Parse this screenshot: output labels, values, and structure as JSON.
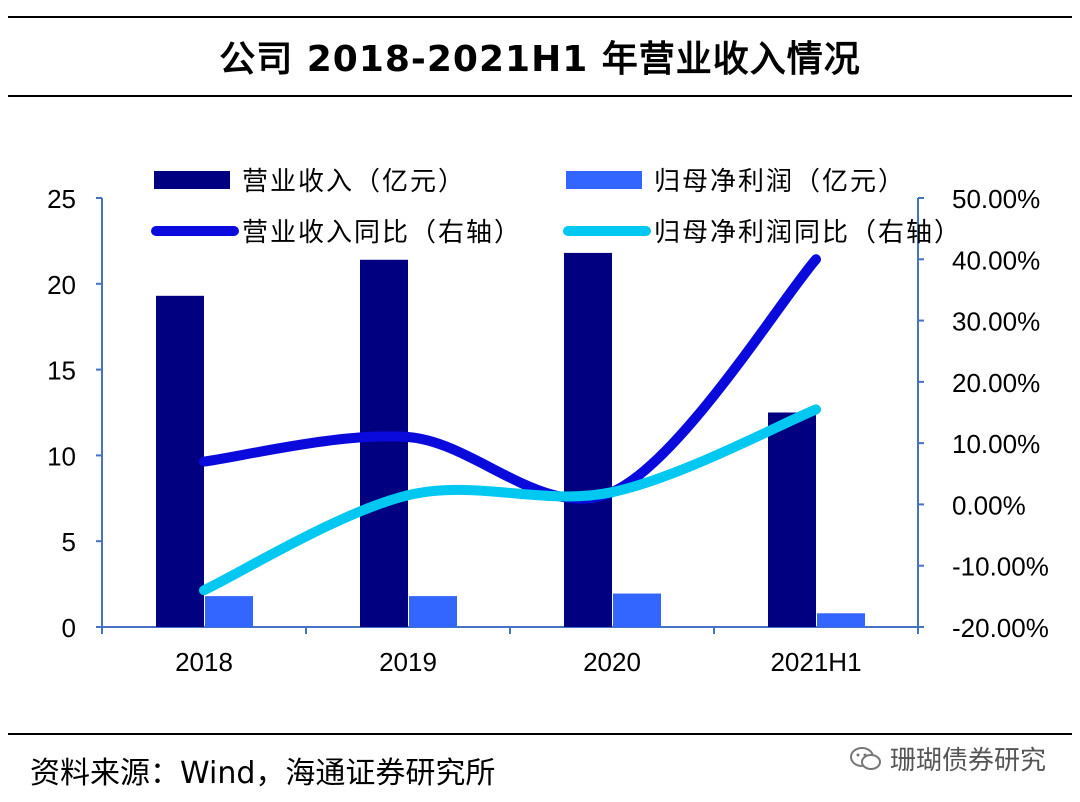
{
  "title": "公司 2018-2021H1 年营业收入情况",
  "source": "资料来源：Wind，海通证券研究所",
  "watermark": "珊瑚债券研究",
  "colors": {
    "revenue_bar": "#000080",
    "profit_bar": "#3366FF",
    "revenue_line": "#0A0ADC",
    "profit_line": "#00C8F0",
    "axis": "#4472C4"
  },
  "chart_data": {
    "type": "bar",
    "categories": [
      "2018",
      "2019",
      "2020",
      "2021H1"
    ],
    "series": [
      {
        "name": "营业收入（亿元）",
        "type": "bar",
        "axis": "left",
        "values": [
          19.3,
          21.4,
          21.8,
          12.5
        ]
      },
      {
        "name": "归母净利润（亿元）",
        "type": "bar",
        "axis": "left",
        "values": [
          1.8,
          1.8,
          1.95,
          0.8
        ]
      },
      {
        "name": "营业收入同比（右轴）",
        "type": "line",
        "axis": "right",
        "values": [
          7.0,
          11.0,
          2.0,
          40.0
        ]
      },
      {
        "name": "归母净利润同比（右轴）",
        "type": "line",
        "axis": "right",
        "values": [
          -14.0,
          1.5,
          2.0,
          15.5
        ]
      }
    ],
    "left_axis": {
      "min": 0,
      "max": 25,
      "ticks": [
        "0",
        "5",
        "10",
        "15",
        "20",
        "25"
      ]
    },
    "right_axis": {
      "min": -20,
      "max": 50,
      "unit": "%",
      "ticks": [
        "-20.00%",
        "-10.00%",
        "0.00%",
        "10.00%",
        "20.00%",
        "30.00%",
        "40.00%",
        "50.00%"
      ]
    },
    "legend_position": "top",
    "grid": false
  }
}
